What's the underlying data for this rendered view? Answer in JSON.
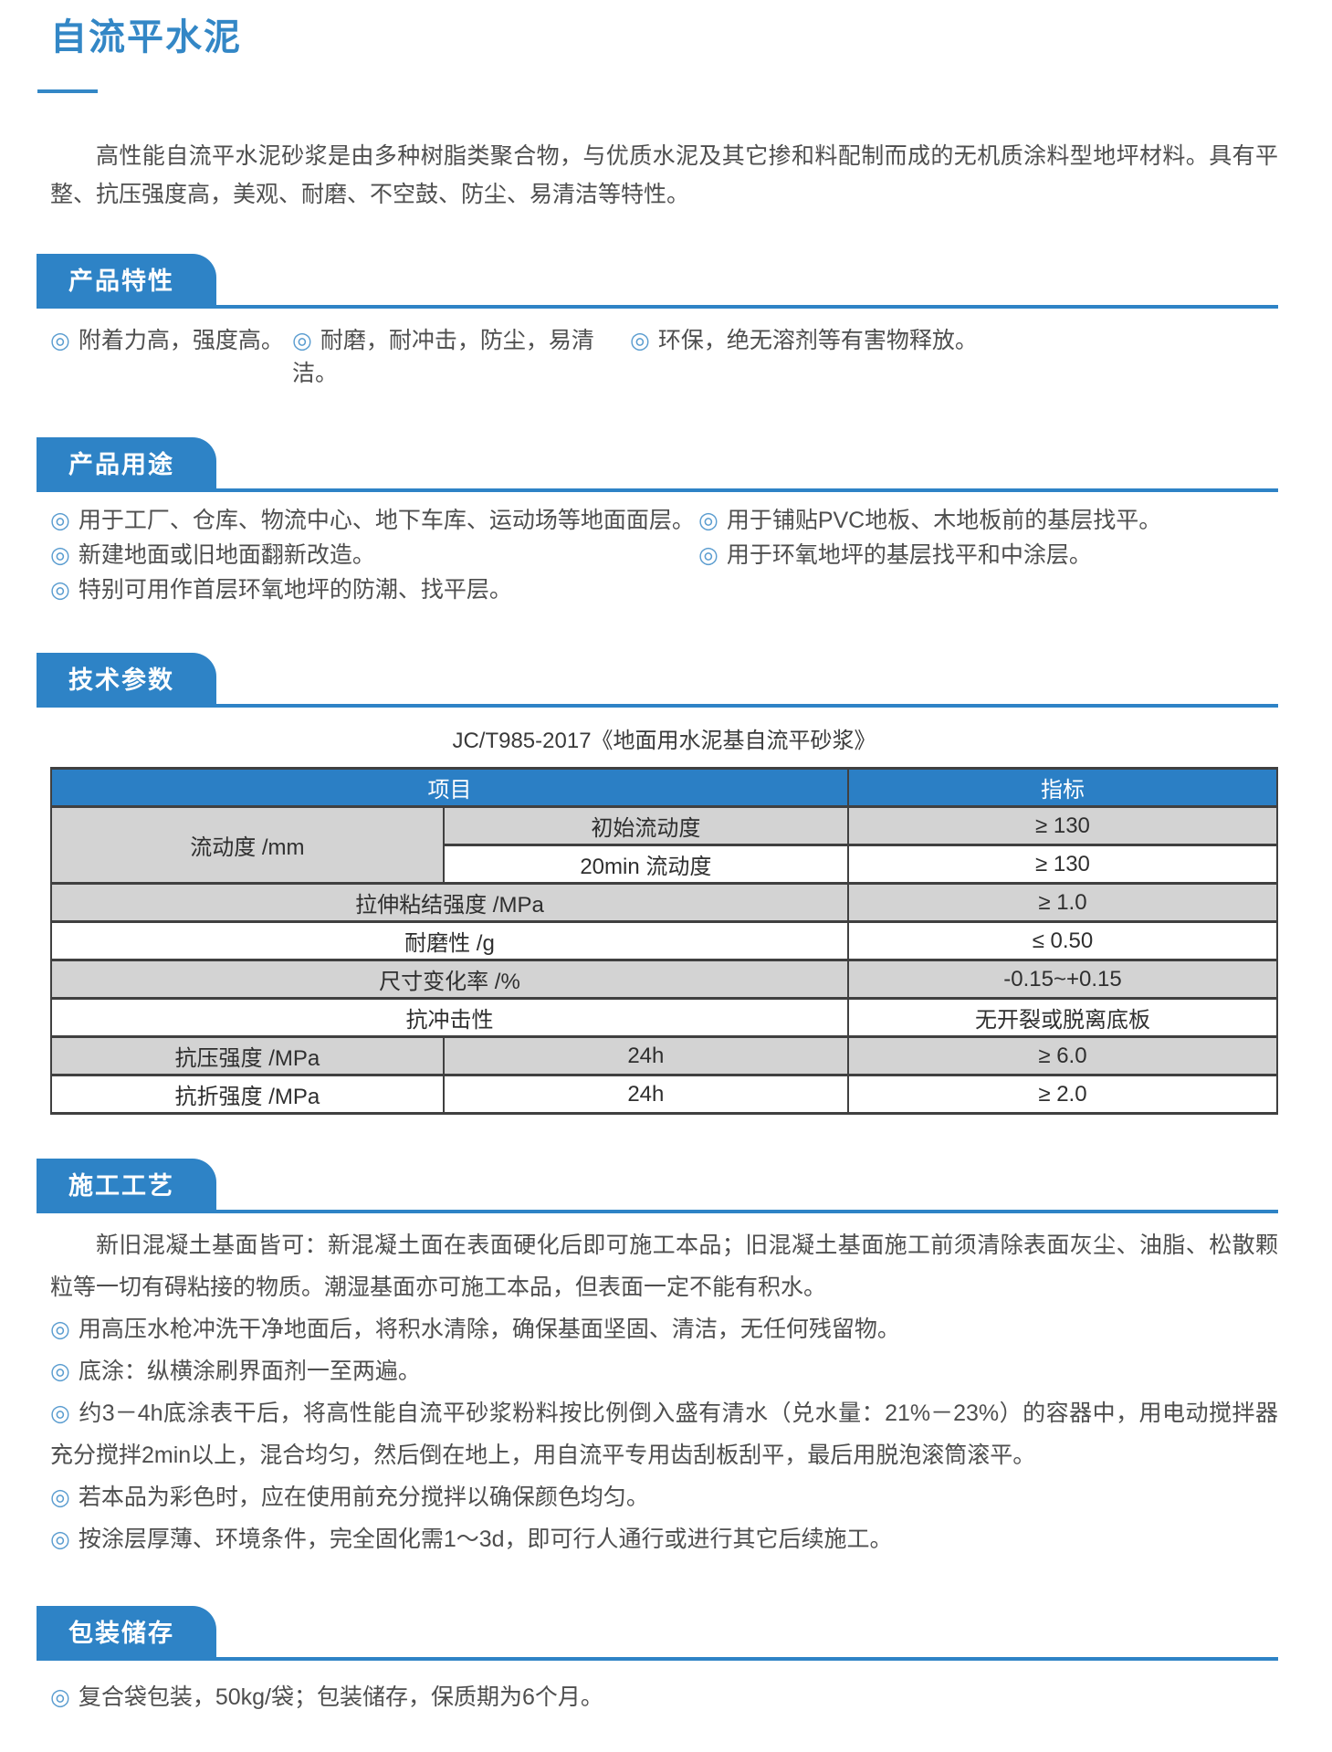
{
  "colors": {
    "accent": "#2e83c6",
    "title": "#3387c6",
    "table_header_bg": "#2b7fc5",
    "row_gray": "#d3d3d3",
    "bullet": "#5b9dd0",
    "border": "#404040",
    "text": "#4a4a4a"
  },
  "icons": {
    "bullet": "◎"
  },
  "page": {
    "title": "自流平水泥",
    "intro": "高性能自流平水泥砂浆是由多种树脂类聚合物，与优质水泥及其它掺和料配制而成的无机质涂料型地坪材料。具有平整、抗压强度高，美观、耐磨、不空鼓、防尘、易清洁等特性。"
  },
  "sections": {
    "features": {
      "heading": "产品特性",
      "items": [
        "附着力高，强度高。",
        "耐磨，耐冲击，防尘，易清洁。",
        "环保，绝无溶剂等有害物释放。"
      ]
    },
    "uses": {
      "heading": "产品用途",
      "left_items": [
        "用于工厂、仓库、物流中心、地下车库、运动场等地面面层。",
        "新建地面或旧地面翻新改造。",
        "特别可用作首层环氧地坪的防潮、找平层。"
      ],
      "right_items": [
        "用于铺贴PVC地板、木地板前的基层找平。",
        "用于环氧地坪的基层找平和中涂层。"
      ]
    },
    "specs": {
      "heading": "技术参数",
      "caption": "JC/T985-2017《地面用水泥基自流平砂浆》",
      "table": {
        "header": [
          {
            "t": "项目",
            "cs": 2
          },
          {
            "t": "指标"
          }
        ],
        "rows": [
          [
            {
              "t": "流动度 /mm",
              "rs": 2,
              "bg": "gray"
            },
            {
              "t": "初始流动度",
              "bg": "gray"
            },
            {
              "t": "≥ 130",
              "bg": "gray"
            }
          ],
          [
            {
              "t": "20min 流动度",
              "bg": "white"
            },
            {
              "t": "≥ 130",
              "bg": "white"
            }
          ],
          [
            {
              "t": "拉伸粘结强度 /MPa",
              "cs": 2,
              "bg": "gray"
            },
            {
              "t": "≥ 1.0",
              "bg": "gray"
            }
          ],
          [
            {
              "t": "耐磨性 /g",
              "cs": 2,
              "bg": "white"
            },
            {
              "t": "≤ 0.50",
              "bg": "white"
            }
          ],
          [
            {
              "t": "尺寸变化率 /%",
              "cs": 2,
              "bg": "gray"
            },
            {
              "t": "-0.15~+0.15",
              "bg": "gray"
            }
          ],
          [
            {
              "t": "抗冲击性",
              "cs": 2,
              "bg": "white"
            },
            {
              "t": "无开裂或脱离底板",
              "bg": "white"
            }
          ],
          [
            {
              "t": "抗压强度 /MPa",
              "bg": "gray"
            },
            {
              "t": "24h",
              "bg": "gray"
            },
            {
              "t": "≥ 6.0",
              "bg": "gray"
            }
          ],
          [
            {
              "t": "抗折强度 /MPa",
              "bg": "white"
            },
            {
              "t": "24h",
              "bg": "white"
            },
            {
              "t": "≥ 2.0",
              "bg": "white"
            }
          ]
        ]
      }
    },
    "process": {
      "heading": "施工工艺",
      "paragraph": "新旧混凝土基面皆可：新混凝土面在表面硬化后即可施工本品；旧混凝土基面施工前须清除表面灰尘、油脂、松散颗粒等一切有碍粘接的物质。潮湿基面亦可施工本品，但表面一定不能有积水。",
      "items": [
        "用高压水枪冲洗干净地面后，将积水清除，确保基面坚固、清洁，无任何残留物。",
        "底涂：纵横涂刷界面剂一至两遍。",
        "约3－4h底涂表干后，将高性能自流平砂浆粉料按比例倒入盛有清水（兑水量：21%－23%）的容器中，用电动搅拌器充分搅拌2min以上，混合均匀，然后倒在地上，用自流平专用齿刮板刮平，最后用脱泡滚筒滚平。",
        "若本品为彩色时，应在使用前充分搅拌以确保颜色均匀。",
        "按涂层厚薄、环境条件，完全固化需1～3d，即可行人通行或进行其它后续施工。"
      ]
    },
    "packaging": {
      "heading": "包装储存",
      "items": [
        "复合袋包装，50kg/袋；包装储存，保质期为6个月。"
      ]
    }
  }
}
